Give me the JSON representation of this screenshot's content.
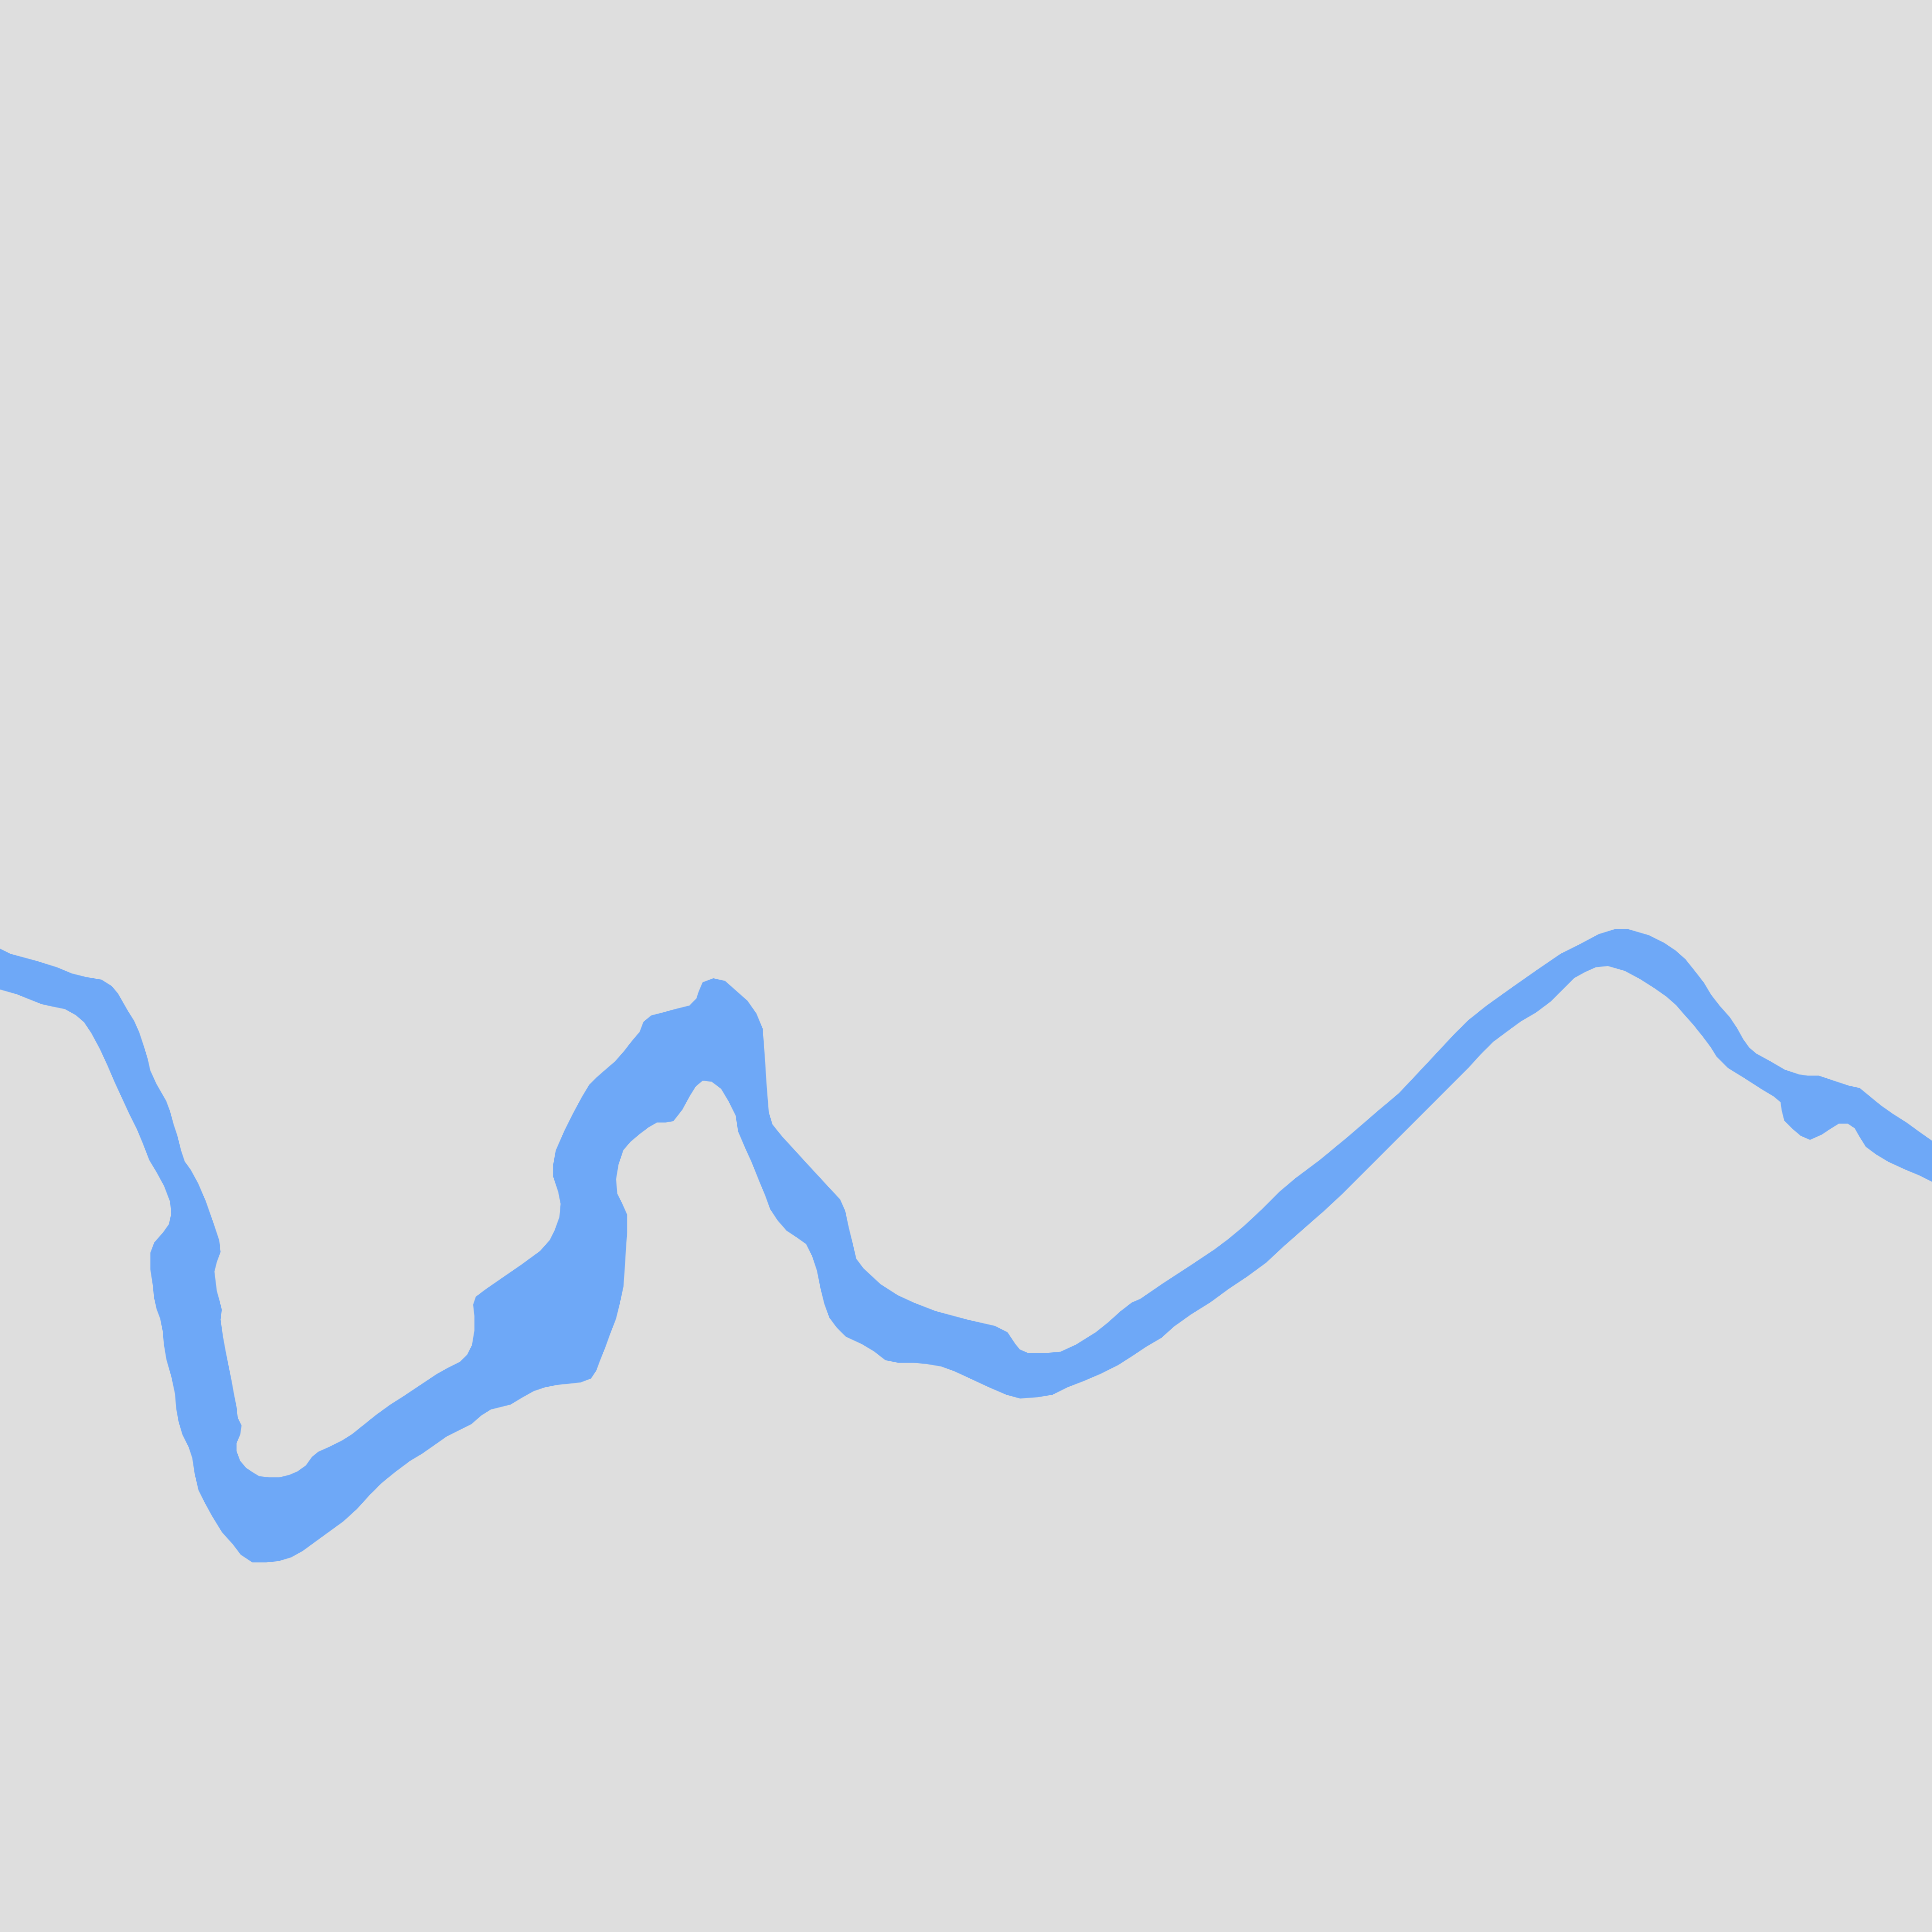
{
  "map": {
    "background_color": "#dedede",
    "features": [
      {
        "kind": "water",
        "subtype": "river",
        "fill_color": "#6ea8f7",
        "label": ""
      }
    ]
  }
}
